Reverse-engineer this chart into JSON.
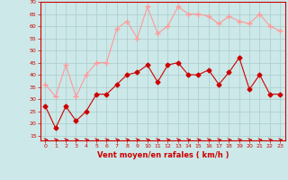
{
  "xlabel": "Vent moyen/en rafales ( km/h )",
  "bg_color": "#cce8e8",
  "grid_color": "#aacccc",
  "x": [
    0,
    1,
    2,
    3,
    4,
    5,
    6,
    7,
    8,
    9,
    10,
    11,
    12,
    13,
    14,
    15,
    16,
    17,
    18,
    19,
    20,
    21,
    22,
    23
  ],
  "y_moyen": [
    27,
    18,
    27,
    21,
    25,
    32,
    32,
    36,
    40,
    41,
    44,
    37,
    44,
    45,
    40,
    40,
    42,
    36,
    41,
    47,
    34,
    40,
    32,
    32
  ],
  "y_rafales": [
    36,
    31,
    44,
    31,
    40,
    45,
    45,
    59,
    62,
    55,
    68,
    57,
    60,
    68,
    65,
    65,
    64,
    61,
    64,
    62,
    61,
    65,
    60,
    58
  ],
  "ylim_min": 13,
  "ylim_max": 70,
  "yticks": [
    15,
    20,
    25,
    30,
    35,
    40,
    45,
    50,
    55,
    60,
    65,
    70
  ],
  "color_moyen": "#cc0000",
  "color_rafales": "#ff9999",
  "arrow_color": "#cc0000"
}
